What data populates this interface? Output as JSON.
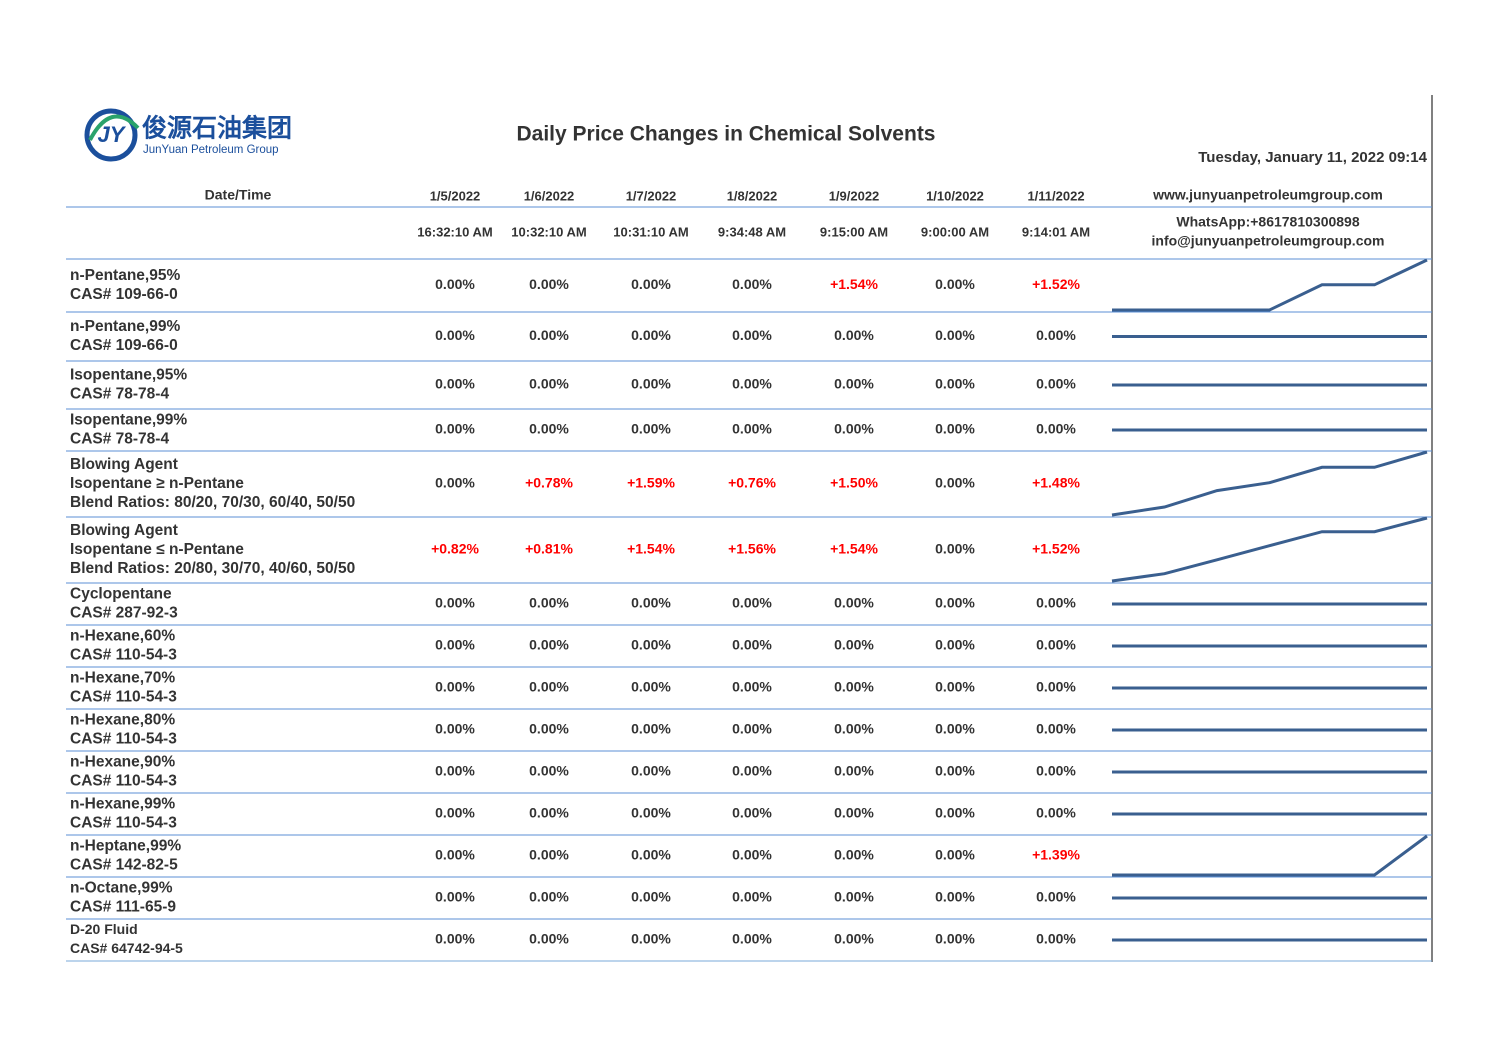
{
  "header": {
    "logo_cn": "俊源石油集团",
    "logo_en": "JunYuan Petroleum Group",
    "logo_mark": "JY",
    "title": "Daily Price Changes in Chemical Solvents",
    "date": "Tuesday, January 11, 2022 09:14"
  },
  "table": {
    "label": "Date/Time",
    "dates": [
      "1/5/2022",
      "1/6/2022",
      "1/7/2022",
      "1/8/2022",
      "1/9/2022",
      "1/10/2022",
      "1/11/2022"
    ],
    "times": [
      "16:32:10 AM",
      "10:32:10 AM",
      "10:31:10 AM",
      "9:34:48 AM",
      "9:15:00 AM",
      "9:00:00 AM",
      "9:14:01 AM"
    ],
    "website": "www.junyuanpetroleumgroup.com",
    "whatsapp": "WhatsApp:+8617810300898",
    "email": "info@junyuanpetroleumgroup.com",
    "positive_color": "#ff0000",
    "neutral_color": "#333333",
    "line_color": "#3a5f8f",
    "rows": [
      {
        "name": [
          "n-Pentane,95%",
          "CAS# 109-66-0"
        ],
        "changes": [
          0,
          0,
          0,
          0,
          1.54,
          0,
          1.52
        ],
        "labels": [
          "0.00%",
          "0.00%",
          "0.00%",
          "0.00%",
          "+1.54%",
          "0.00%",
          "+1.52%"
        ]
      },
      {
        "name": [
          "n-Pentane,99%",
          "CAS# 109-66-0"
        ],
        "changes": [
          0,
          0,
          0,
          0,
          0,
          0,
          0
        ],
        "labels": [
          "0.00%",
          "0.00%",
          "0.00%",
          "0.00%",
          "0.00%",
          "0.00%",
          "0.00%"
        ]
      },
      {
        "name": [
          "Isopentane,95%",
          "CAS# 78-78-4"
        ],
        "changes": [
          0,
          0,
          0,
          0,
          0,
          0,
          0
        ],
        "labels": [
          "0.00%",
          "0.00%",
          "0.00%",
          "0.00%",
          "0.00%",
          "0.00%",
          "0.00%"
        ]
      },
      {
        "name": [
          "Isopentane,99%",
          "CAS# 78-78-4"
        ],
        "changes": [
          0,
          0,
          0,
          0,
          0,
          0,
          0
        ],
        "labels": [
          "0.00%",
          "0.00%",
          "0.00%",
          "0.00%",
          "0.00%",
          "0.00%",
          "0.00%"
        ]
      },
      {
        "name": [
          "Blowing Agent",
          "Isopentane ≥ n-Pentane",
          "Blend Ratios: 80/20, 70/30, 60/40, 50/50"
        ],
        "changes": [
          0,
          0.78,
          1.59,
          0.76,
          1.5,
          0,
          1.48
        ],
        "labels": [
          "0.00%",
          "+0.78%",
          "+1.59%",
          "+0.76%",
          "+1.50%",
          "0.00%",
          "+1.48%"
        ]
      },
      {
        "name": [
          "Blowing Agent",
          "Isopentane ≤ n-Pentane",
          "Blend Ratios: 20/80, 30/70, 40/60, 50/50"
        ],
        "changes": [
          0.82,
          0.81,
          1.54,
          1.56,
          1.54,
          0,
          1.52
        ],
        "labels": [
          "+0.82%",
          "+0.81%",
          "+1.54%",
          "+1.56%",
          "+1.54%",
          "0.00%",
          "+1.52%"
        ]
      },
      {
        "name": [
          "Cyclopentane",
          "CAS# 287-92-3"
        ],
        "changes": [
          0,
          0,
          0,
          0,
          0,
          0,
          0
        ],
        "labels": [
          "0.00%",
          "0.00%",
          "0.00%",
          "0.00%",
          "0.00%",
          "0.00%",
          "0.00%"
        ]
      },
      {
        "name": [
          "n-Hexane,60%",
          "CAS# 110-54-3"
        ],
        "changes": [
          0,
          0,
          0,
          0,
          0,
          0,
          0
        ],
        "labels": [
          "0.00%",
          "0.00%",
          "0.00%",
          "0.00%",
          "0.00%",
          "0.00%",
          "0.00%"
        ]
      },
      {
        "name": [
          "n-Hexane,70%",
          "CAS# 110-54-3"
        ],
        "changes": [
          0,
          0,
          0,
          0,
          0,
          0,
          0
        ],
        "labels": [
          "0.00%",
          "0.00%",
          "0.00%",
          "0.00%",
          "0.00%",
          "0.00%",
          "0.00%"
        ]
      },
      {
        "name": [
          "n-Hexane,80%",
          "CAS# 110-54-3"
        ],
        "changes": [
          0,
          0,
          0,
          0,
          0,
          0,
          0
        ],
        "labels": [
          "0.00%",
          "0.00%",
          "0.00%",
          "0.00%",
          "0.00%",
          "0.00%",
          "0.00%"
        ]
      },
      {
        "name": [
          "n-Hexane,90%",
          "CAS# 110-54-3"
        ],
        "changes": [
          0,
          0,
          0,
          0,
          0,
          0,
          0
        ],
        "labels": [
          "0.00%",
          "0.00%",
          "0.00%",
          "0.00%",
          "0.00%",
          "0.00%",
          "0.00%"
        ]
      },
      {
        "name": [
          "n-Hexane,99%",
          "CAS# 110-54-3"
        ],
        "changes": [
          0,
          0,
          0,
          0,
          0,
          0,
          0
        ],
        "labels": [
          "0.00%",
          "0.00%",
          "0.00%",
          "0.00%",
          "0.00%",
          "0.00%",
          "0.00%"
        ]
      },
      {
        "name": [
          "n-Heptane,99%",
          "CAS# 142-82-5"
        ],
        "changes": [
          0,
          0,
          0,
          0,
          0,
          0,
          1.39
        ],
        "labels": [
          "0.00%",
          "0.00%",
          "0.00%",
          "0.00%",
          "0.00%",
          "0.00%",
          "+1.39%"
        ]
      },
      {
        "name": [
          "n-Octane,99%",
          "CAS# 111-65-9"
        ],
        "changes": [
          0,
          0,
          0,
          0,
          0,
          0,
          0
        ],
        "labels": [
          "0.00%",
          "0.00%",
          "0.00%",
          "0.00%",
          "0.00%",
          "0.00%",
          "0.00%"
        ]
      },
      {
        "name": [
          "D-20 Fluid",
          "CAS# 64742-94-5"
        ],
        "changes": [
          0,
          0,
          0,
          0,
          0,
          0,
          0
        ],
        "labels": [
          "0.00%",
          "0.00%",
          "0.00%",
          "0.00%",
          "0.00%",
          "0.00%",
          "0.00%"
        ]
      }
    ]
  }
}
